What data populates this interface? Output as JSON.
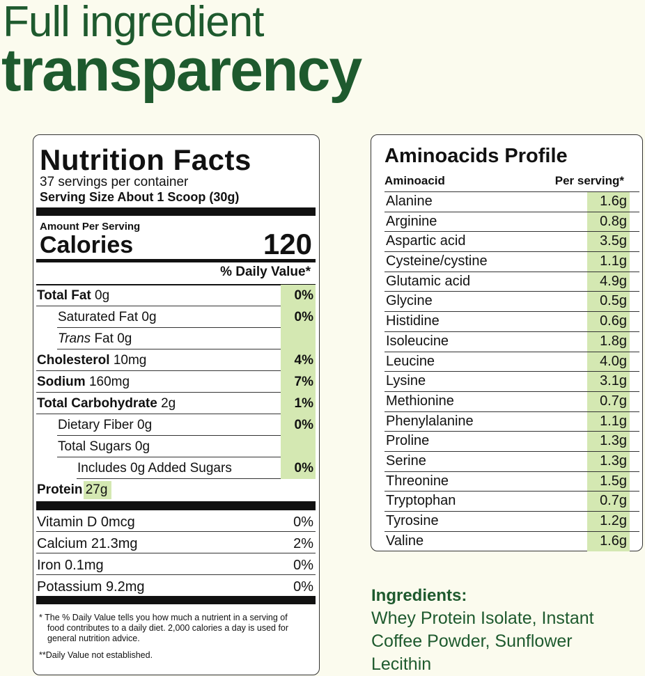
{
  "header": {
    "line1": "Full ingredient",
    "line2": "transparency"
  },
  "nutrition": {
    "title": "Nutrition Facts",
    "servings": "37 servings per container",
    "serving_size": "Serving Size About 1 Scoop (30g)",
    "amount_per_serving": "Amount Per Serving",
    "calories_label": "Calories",
    "calories": 120,
    "daily_value_header": "% Daily Value*",
    "rows": [
      {
        "label": "Total Fat",
        "amount": "0g",
        "dv": "0%"
      },
      {
        "label": "Saturated Fat",
        "amount": "0g",
        "dv": "0%"
      },
      {
        "prefix": "Trans",
        "label": "Fat",
        "amount": "0g"
      },
      {
        "label": "Cholesterol",
        "amount": "10mg",
        "dv": "4%"
      },
      {
        "label": "Sodium",
        "amount": "160mg",
        "dv": "7%"
      },
      {
        "label": "Total Carbohydrate",
        "amount": "2g",
        "dv": "1%"
      },
      {
        "label": "Dietary Fiber",
        "amount": "0g",
        "dv": "0%"
      },
      {
        "label": "Total Sugars",
        "amount": "0g"
      },
      {
        "label": "Includes 0g Added Sugars",
        "dv": "0%"
      },
      {
        "label": "Protein",
        "amount": "27g"
      }
    ],
    "vitamins": [
      {
        "label": "Vitamin D",
        "amount": "0mcg",
        "dv": "0%"
      },
      {
        "label": "Calcium",
        "amount": "21.3mg",
        "dv": "2%"
      },
      {
        "label": "Iron",
        "amount": "0.1mg",
        "dv": "0%"
      },
      {
        "label": "Potassium",
        "amount": "9.2mg",
        "dv": "0%"
      }
    ],
    "footnote1": "* The % Daily Value tells you how much a nutrient in a serving of food contributes to a daily diet. 2,000 calories a day is used for general nutrition advice.",
    "footnote2": "**Daily Value not established."
  },
  "amino": {
    "title": "Aminoacids Profile",
    "col1": "Aminoacid",
    "col2": "Per serving*",
    "rows": [
      {
        "name": "Alanine",
        "amount": "1.6g"
      },
      {
        "name": "Arginine",
        "amount": "0.8g"
      },
      {
        "name": "Aspartic acid",
        "amount": "3.5g"
      },
      {
        "name": "Cysteine/cystine",
        "amount": "1.1g"
      },
      {
        "name": "Glutamic acid",
        "amount": "4.9g"
      },
      {
        "name": "Glycine",
        "amount": "0.5g"
      },
      {
        "name": "Histidine",
        "amount": "0.6g"
      },
      {
        "name": "Isoleucine",
        "amount": "1.8g"
      },
      {
        "name": "Leucine",
        "amount": "4.0g"
      },
      {
        "name": "Lysine",
        "amount": "3.1g"
      },
      {
        "name": "Methionine",
        "amount": "0.7g"
      },
      {
        "name": "Phenylalanine",
        "amount": "1.1g"
      },
      {
        "name": "Proline",
        "amount": "1.3g"
      },
      {
        "name": "Serine",
        "amount": "1.3g"
      },
      {
        "name": "Threonine",
        "amount": "1.5g"
      },
      {
        "name": "Tryptophan",
        "amount": "0.7g"
      },
      {
        "name": "Tyrosine",
        "amount": "1.2g"
      },
      {
        "name": "Valine",
        "amount": "1.6g"
      }
    ]
  },
  "ingredients": {
    "title": "Ingredients:",
    "text": "Whey Protein Isolate, Instant Coffee Powder, Sunflower Lecithin"
  }
}
